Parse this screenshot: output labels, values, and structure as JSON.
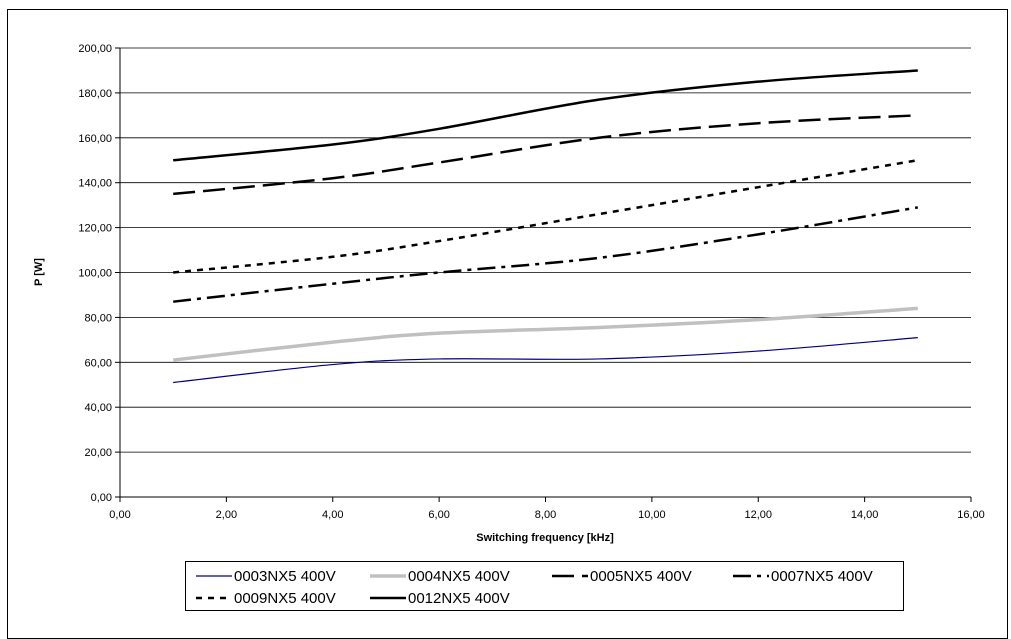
{
  "chart_data": {
    "type": "line",
    "xlabel": "Switching frequency [kHz]",
    "ylabel": "P [W]",
    "xlim": [
      0,
      16
    ],
    "ylim": [
      0,
      200
    ],
    "x_ticks": [
      "0,00",
      "2,00",
      "4,00",
      "6,00",
      "8,00",
      "10,00",
      "12,00",
      "14,00",
      "16,00"
    ],
    "y_ticks": [
      "0,00",
      "20,00",
      "40,00",
      "60,00",
      "80,00",
      "100,00",
      "120,00",
      "140,00",
      "160,00",
      "180,00",
      "200,00"
    ],
    "grid": "horizontal",
    "legend_position": "bottom",
    "series": [
      {
        "name": "0003NX5 400V",
        "color": "#000080",
        "style": "solid-thin",
        "x": [
          1,
          4,
          6,
          9,
          12,
          15
        ],
        "values": [
          51,
          59,
          61.5,
          61.5,
          65,
          71
        ]
      },
      {
        "name": "0004NX5 400V",
        "color": "#c0c0c0",
        "style": "solid-thick",
        "x": [
          1,
          4,
          6,
          9,
          12,
          15
        ],
        "values": [
          61,
          69,
          73,
          75.5,
          79,
          84
        ]
      },
      {
        "name": "0005NX5 400V",
        "color": "#000000",
        "style": "long-dash",
        "x": [
          1,
          4,
          6,
          9,
          12,
          15
        ],
        "values": [
          135,
          142,
          149,
          160,
          166.5,
          170
        ]
      },
      {
        "name": "0007NX5 400V",
        "color": "#000000",
        "style": "dash-dot",
        "x": [
          1,
          4,
          6,
          9,
          12,
          15
        ],
        "values": [
          87,
          95,
          100,
          106.5,
          117,
          129
        ]
      },
      {
        "name": "0009NX5 400V",
        "color": "#000000",
        "style": "short-dash",
        "x": [
          1,
          4,
          6,
          9,
          12,
          15
        ],
        "values": [
          100,
          107,
          114,
          126,
          138,
          150
        ]
      },
      {
        "name": "0012NX5 400V",
        "color": "#000000",
        "style": "solid-bold",
        "x": [
          1,
          4,
          6,
          9,
          12,
          15
        ],
        "values": [
          150,
          157,
          164,
          177,
          185,
          190
        ]
      }
    ]
  }
}
